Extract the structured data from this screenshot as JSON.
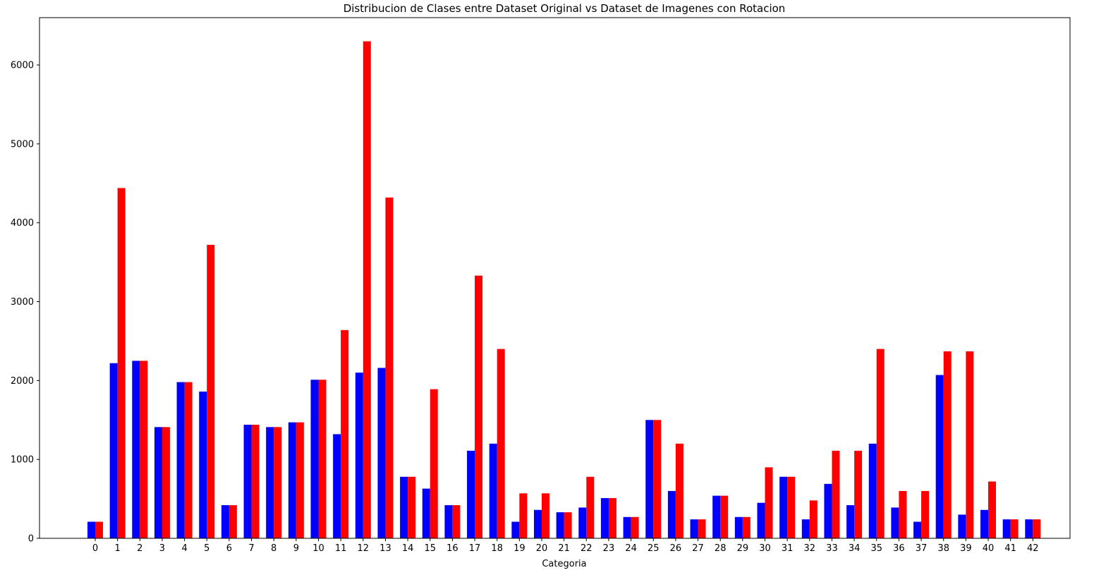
{
  "chart_data": {
    "type": "bar",
    "title": "Distribucion de Clases entre Dataset Original vs Dataset de Imagenes con Rotacion",
    "xlabel": "Categoria",
    "ylabel": "",
    "ylim": [
      0,
      6600
    ],
    "yticks": [
      0,
      1000,
      2000,
      3000,
      4000,
      5000,
      6000
    ],
    "grid": false,
    "legend": "none",
    "categories": [
      "0",
      "1",
      "2",
      "3",
      "4",
      "5",
      "6",
      "7",
      "8",
      "9",
      "10",
      "11",
      "12",
      "13",
      "14",
      "15",
      "16",
      "17",
      "18",
      "19",
      "20",
      "21",
      "22",
      "23",
      "24",
      "25",
      "26",
      "27",
      "28",
      "29",
      "30",
      "31",
      "32",
      "33",
      "34",
      "35",
      "36",
      "37",
      "38",
      "39",
      "40",
      "41",
      "42"
    ],
    "series": [
      {
        "color": "#0000ff",
        "values": [
          210,
          2220,
          2250,
          1410,
          1980,
          1860,
          420,
          1440,
          1410,
          1470,
          2010,
          1320,
          2100,
          2160,
          780,
          630,
          420,
          1110,
          1200,
          210,
          360,
          330,
          390,
          510,
          270,
          1500,
          600,
          240,
          540,
          270,
          450,
          780,
          240,
          690,
          420,
          1200,
          390,
          210,
          2070,
          300,
          360,
          240,
          240
        ]
      },
      {
        "color": "#ff0000",
        "values": [
          210,
          4440,
          2250,
          1410,
          1980,
          3720,
          420,
          1440,
          1410,
          1470,
          2010,
          2640,
          6300,
          4320,
          780,
          1890,
          420,
          3330,
          2400,
          570,
          570,
          330,
          780,
          510,
          270,
          1500,
          1200,
          240,
          540,
          270,
          900,
          780,
          480,
          1110,
          1110,
          2400,
          600,
          600,
          2370,
          2370,
          720,
          240,
          240
        ]
      }
    ]
  }
}
